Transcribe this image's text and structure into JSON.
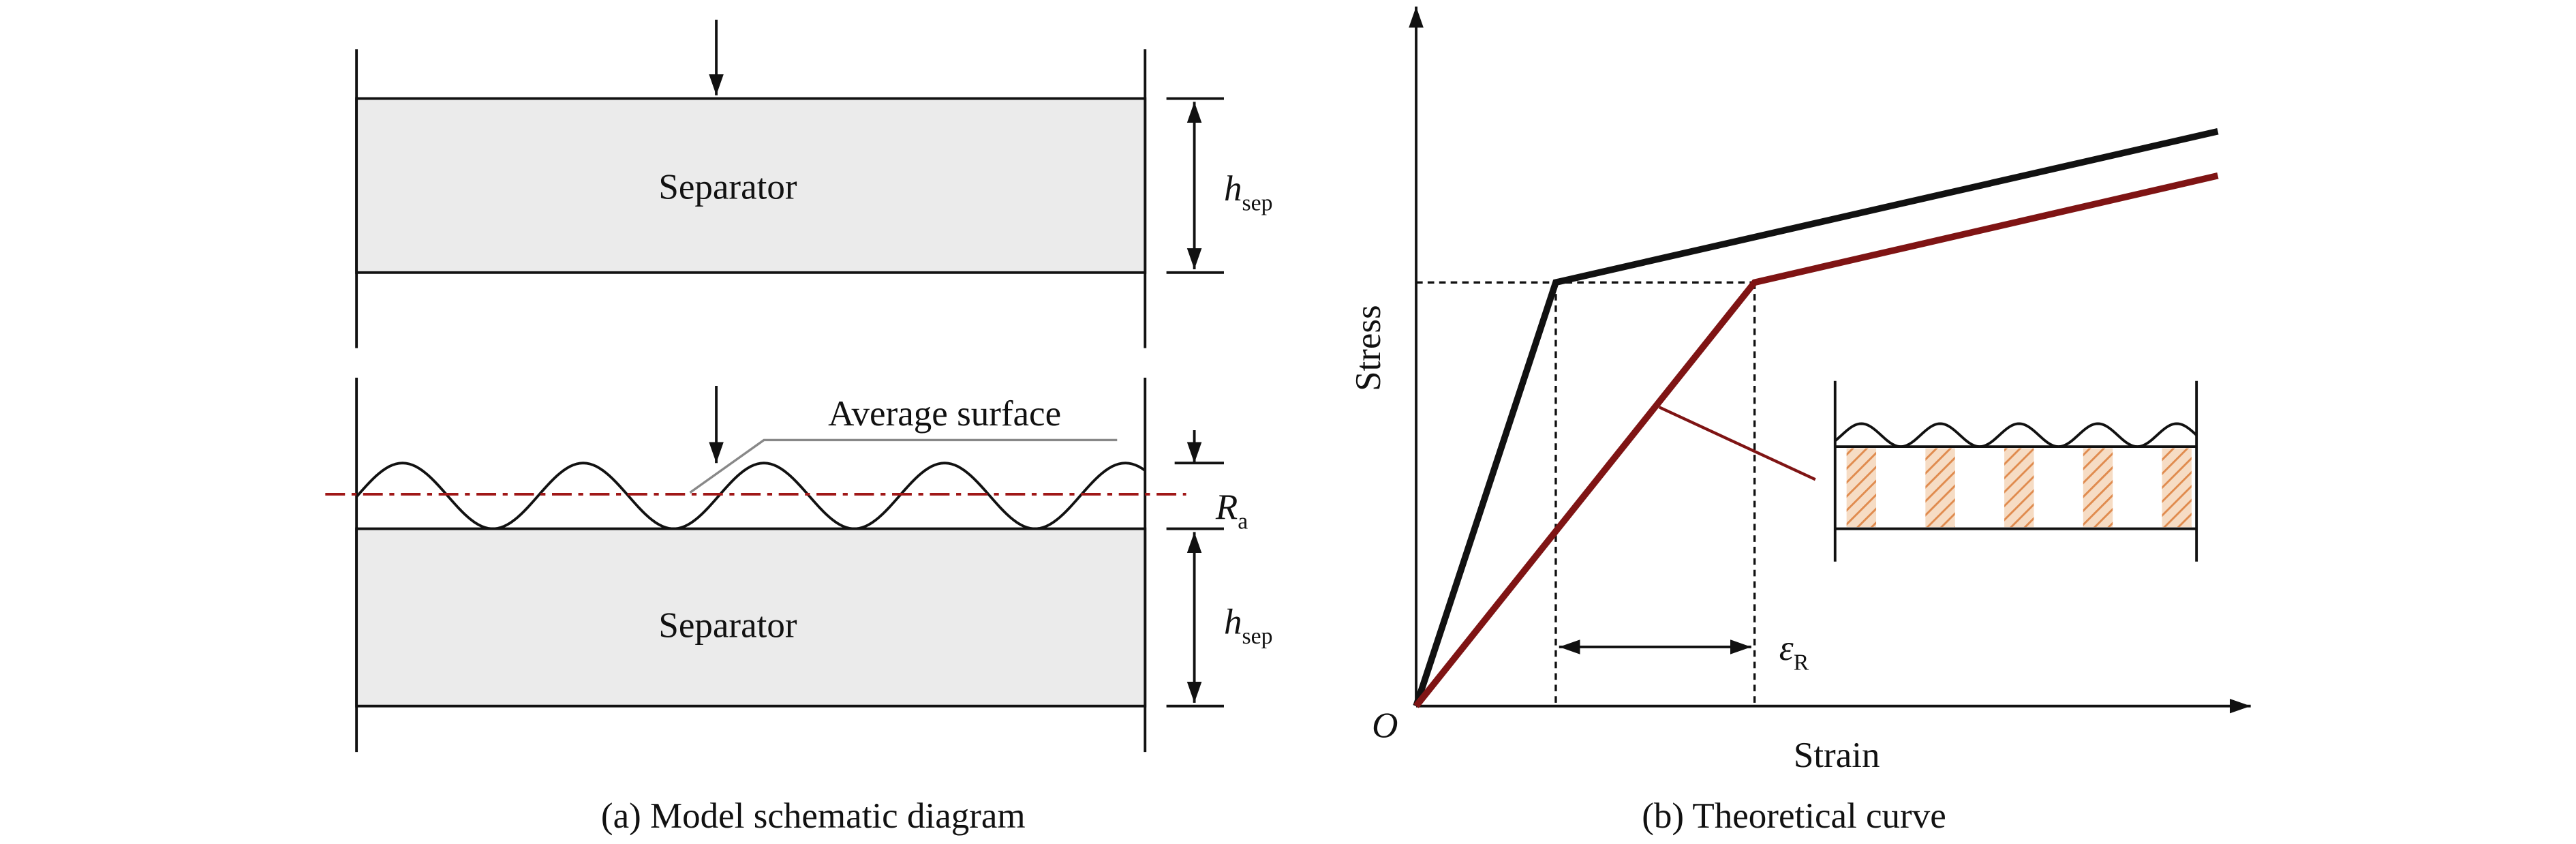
{
  "panel_a": {
    "separator_top": "Separator",
    "separator_bottom": "Separator",
    "thickness_top": {
      "symbol": "h",
      "subscript": "sep"
    },
    "thickness_bottom": {
      "symbol": "h",
      "subscript": "sep"
    },
    "average_surface": "Average surface",
    "roughness": {
      "symbol": "R",
      "subscript": "a"
    },
    "caption": "(a) Model schematic diagram"
  },
  "panel_b": {
    "y_label": "Stress",
    "x_label": "Strain",
    "origin": "O",
    "strain_offset": {
      "symbol": "ε",
      "subscript": "R"
    },
    "caption": "(b) Theoretical curve"
  }
}
